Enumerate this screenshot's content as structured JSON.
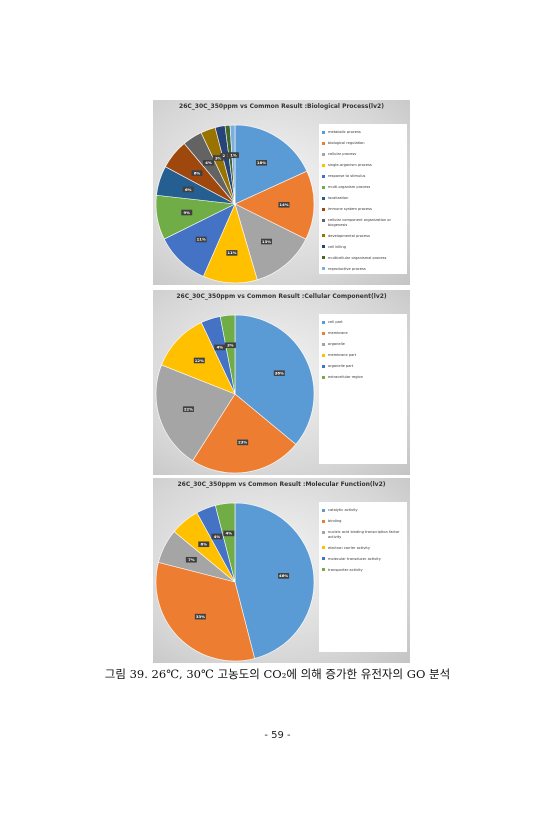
{
  "chart_data": [
    {
      "type": "pie",
      "title": "26C_30C_350ppm vs Common Result :Biological Process(lv2)",
      "categories": [
        "metabolic process",
        "biological regulation",
        "cellular process",
        "single-organism process",
        "response to stimulus",
        "multi-organism process",
        "localization",
        "immune system process",
        "cellular component organization or biogenesis",
        "developmental process",
        "cell killing",
        "multicellular organismal process",
        "reproductive process"
      ],
      "values": [
        18,
        14,
        13,
        11,
        11,
        9,
        6,
        6,
        4,
        3,
        2,
        1,
        1
      ],
      "value_labels": [
        "18%",
        "14%",
        "13%",
        "11%",
        "11%",
        "9%",
        "6%",
        "6%",
        "4%",
        "3%",
        "2%",
        "1%",
        "1%"
      ],
      "colors": [
        "#5b9bd5",
        "#ed7d31",
        "#a5a5a5",
        "#ffc000",
        "#4472c4",
        "#70ad47",
        "#255e91",
        "#9e480e",
        "#636363",
        "#997300",
        "#264478",
        "#43682b",
        "#7cafdd"
      ]
    },
    {
      "type": "pie",
      "title": "26C_30C_350ppm vs Common Result :Cellular Component(lv2)",
      "categories": [
        "cell part",
        "membrane",
        "organelle",
        "membrane part",
        "organelle part",
        "extracellular region"
      ],
      "values": [
        36,
        23,
        22,
        12,
        4,
        3
      ],
      "value_labels": [
        "36%",
        "23%",
        "22%",
        "12%",
        "4%",
        "3%"
      ],
      "colors": [
        "#5b9bd5",
        "#ed7d31",
        "#a5a5a5",
        "#ffc000",
        "#4472c4",
        "#70ad47"
      ]
    },
    {
      "type": "pie",
      "title": "26C_30C_350ppm vs Common Result :Molecular Function(lv2)",
      "categories": [
        "catalytic activity",
        "binding",
        "nucleic acid binding transcription factor activity",
        "electron carrier activity",
        "molecular transducer activity",
        "transporter activity"
      ],
      "values": [
        46,
        33,
        7,
        6,
        4,
        4
      ],
      "value_labels": [
        "46%",
        "33%",
        "7%",
        "6%",
        "4%",
        "4%"
      ],
      "colors": [
        "#5b9bd5",
        "#ed7d31",
        "#a5a5a5",
        "#ffc000",
        "#4472c4",
        "#70ad47"
      ]
    }
  ],
  "caption": "그림 39. 26℃, 30℃ 고농도의 CO₂에 의해 증가한 유전자의 GO 분석",
  "page_number": "- 59 -"
}
